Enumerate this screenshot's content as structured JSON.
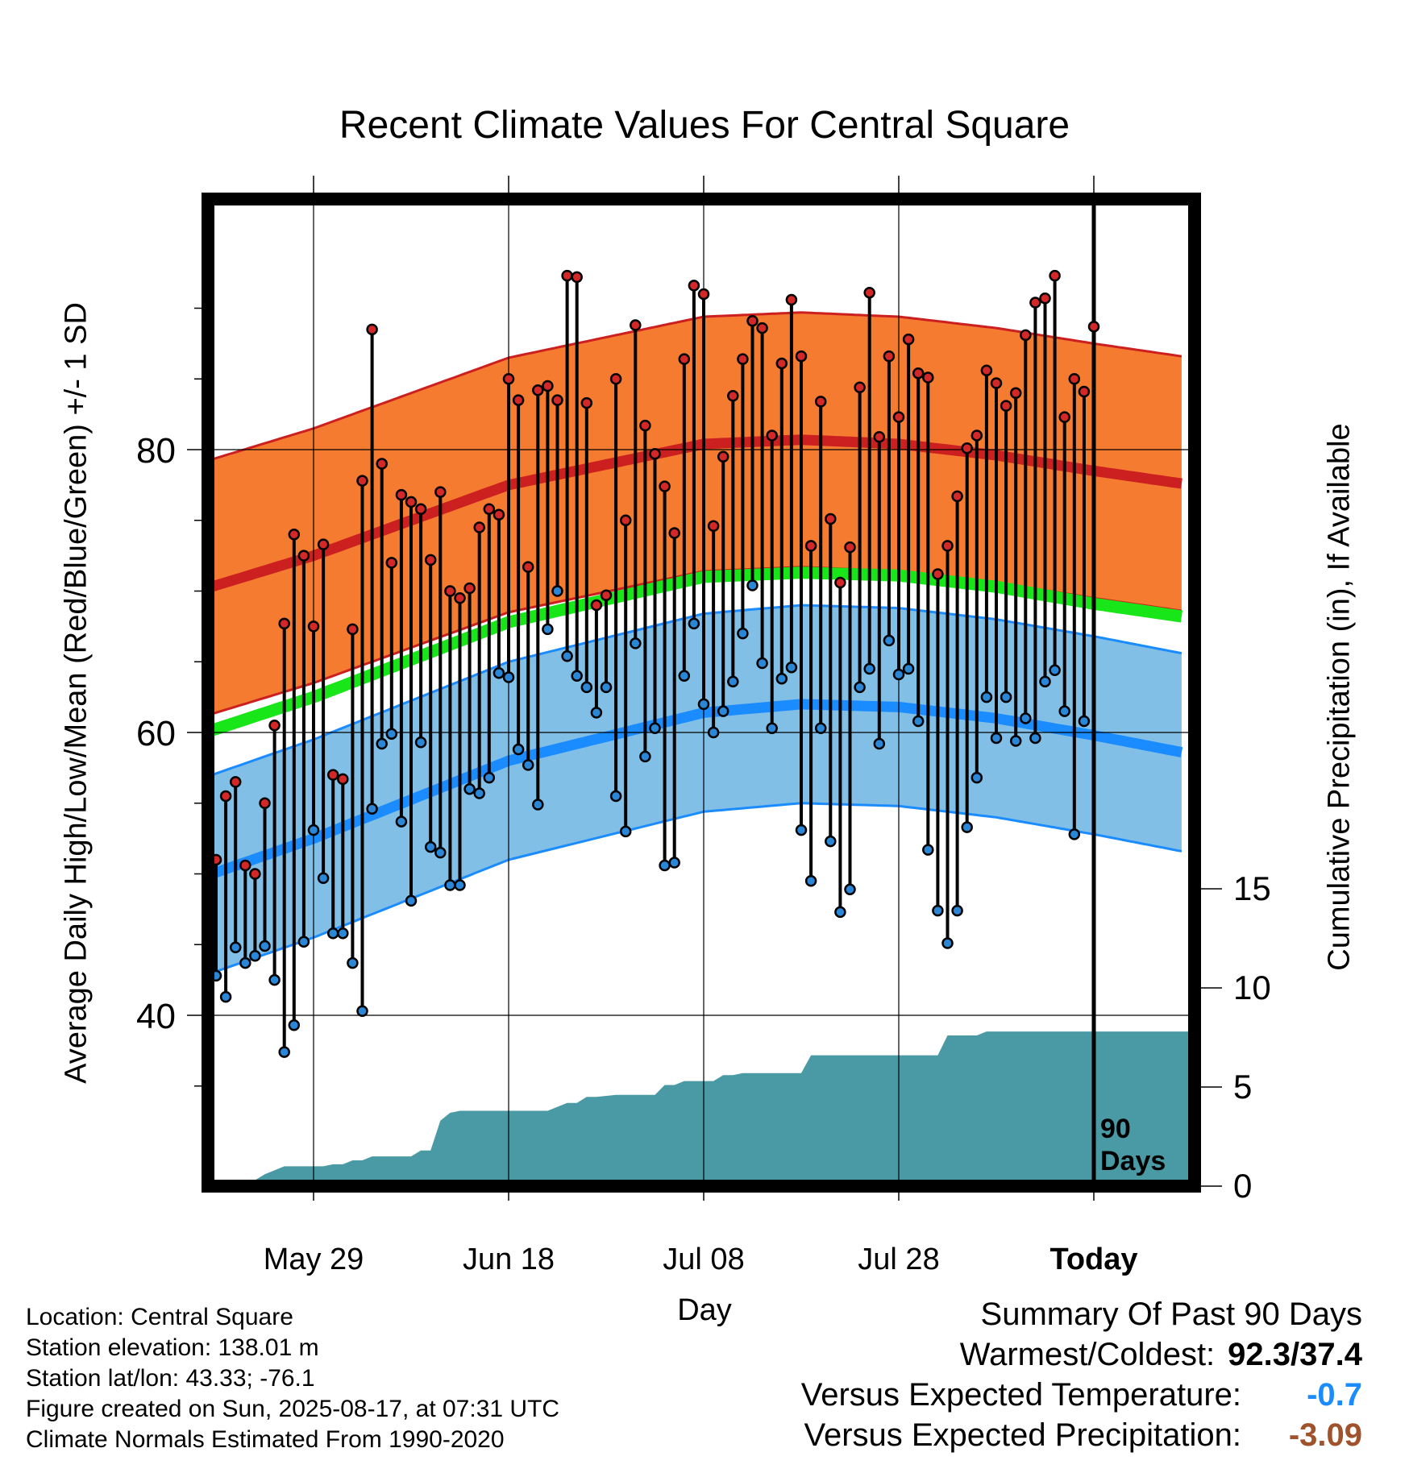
{
  "chart_data": {
    "type": "line",
    "title": "Recent Climate Values For Central Square",
    "xlabel": "Day",
    "ylabel": "Average Daily High/Low/Mean (Red/Blue/Green) +/- 1 SD",
    "y2label": "Cumulative Precipitation (in), If Available",
    "x_tick_labels": [
      "May 29",
      "Jun 18",
      "Jul 08",
      "Jul 28",
      "Today"
    ],
    "y_ticks": [
      40,
      60,
      80
    ],
    "y2_ticks": [
      0,
      5,
      10,
      15
    ],
    "ylim": [
      28,
      98
    ],
    "y2lim": [
      0,
      49.5
    ],
    "annotation": [
      "90",
      "Days"
    ],
    "colors": {
      "high_band": "#f47b30",
      "high_mean": "#cc2020",
      "mean_line": "#19e619",
      "low_band": "#82bfe6",
      "low_mean": "#1a8cff",
      "precip": "#4a9aa5",
      "high_marker": "#d42828",
      "low_marker": "#2a86d6"
    },
    "normal_high": [
      [
        -10,
        68.3
      ],
      [
        10,
        72.5
      ],
      [
        30,
        77.5
      ],
      [
        50,
        80.4
      ],
      [
        60,
        80.7
      ],
      [
        70,
        80.4
      ],
      [
        80,
        79.6
      ],
      [
        90,
        78.5
      ],
      [
        99,
        77.6
      ]
    ],
    "normal_high_sd": 9.0,
    "normal_low": [
      [
        -10,
        47.7
      ],
      [
        10,
        52.5
      ],
      [
        30,
        58.0
      ],
      [
        50,
        61.4
      ],
      [
        60,
        62.0
      ],
      [
        70,
        61.8
      ],
      [
        80,
        61.0
      ],
      [
        90,
        59.8
      ],
      [
        99,
        58.6
      ]
    ],
    "normal_low_sd": 7.0,
    "normal_mean": [
      [
        -10,
        58.0
      ],
      [
        10,
        62.5
      ],
      [
        30,
        67.8
      ],
      [
        50,
        71.0
      ],
      [
        60,
        71.3
      ],
      [
        70,
        71.1
      ],
      [
        80,
        70.3
      ],
      [
        90,
        69.1
      ],
      [
        99,
        68.2
      ]
    ],
    "daily_high": [
      51,
      55.5,
      56.5,
      50.6,
      50,
      55,
      60.5,
      67.7,
      74,
      72.5,
      67.5,
      73.3,
      57,
      56.7,
      67.3,
      77.8,
      88.5,
      79,
      72,
      76.8,
      76.3,
      75.8,
      72.2,
      77,
      70,
      69.5,
      70.2,
      74.5,
      75.8,
      75.4,
      85,
      83.5,
      71.7,
      84.2,
      84.5,
      83.5,
      92.3,
      92.2,
      83.3,
      69,
      69.7,
      85,
      75,
      88.8,
      81.7,
      79.7,
      77.4,
      74.1,
      86.4,
      91.6,
      91,
      74.6,
      79.5,
      83.8,
      86.4,
      89.1,
      88.6,
      81,
      86.1,
      90.6,
      86.6,
      73.2,
      83.4,
      75.1,
      70.6,
      73.1,
      84.4,
      91.1,
      80.9,
      86.6,
      82.3,
      87.8,
      85.4,
      85.1,
      71.2,
      73.2,
      76.7,
      80.1,
      81,
      85.6,
      84.7,
      83.1,
      84,
      88.1,
      90.4,
      90.7,
      92.3,
      82.3,
      85,
      84.1,
      88.7
    ],
    "daily_low": [
      42.8,
      41.3,
      44.8,
      43.7,
      44.2,
      44.9,
      42.5,
      37.4,
      39.3,
      45.2,
      53.1,
      49.7,
      45.8,
      45.8,
      43.7,
      40.3,
      54.6,
      59.2,
      59.9,
      53.7,
      48.1,
      59.3,
      51.9,
      51.5,
      49.2,
      49.2,
      56,
      55.7,
      56.8,
      64.2,
      63.9,
      58.8,
      57.7,
      54.9,
      67.3,
      70,
      65.4,
      64,
      63.2,
      61.4,
      63.2,
      55.5,
      53,
      66.3,
      58.3,
      60.3,
      50.6,
      50.8,
      64,
      67.7,
      62,
      60,
      61.5,
      63.6,
      67,
      70.4,
      64.9,
      60.3,
      63.8,
      64.6,
      53.1,
      49.5,
      60.3,
      52.3,
      47.3,
      48.9,
      63.2,
      64.5,
      59.2,
      66.5,
      64.1,
      64.5,
      60.8,
      51.7,
      47.4,
      45.1,
      47.4,
      53.3,
      56.8,
      62.5,
      59.6,
      62.5,
      59.4,
      61,
      59.6,
      63.6,
      64.4,
      61.5,
      52.8,
      60.8
    ],
    "cumulative_precip": [
      [
        0,
        0
      ],
      [
        3,
        0
      ],
      [
        5,
        0.6
      ],
      [
        7,
        1.0
      ],
      [
        11,
        1.0
      ],
      [
        12,
        1.1
      ],
      [
        13,
        1.1
      ],
      [
        14,
        1.3
      ],
      [
        15,
        1.3
      ],
      [
        16,
        1.5
      ],
      [
        20,
        1.5
      ],
      [
        21,
        1.8
      ],
      [
        22,
        1.8
      ],
      [
        23,
        3.3
      ],
      [
        24,
        3.7
      ],
      [
        25,
        3.8
      ],
      [
        34,
        3.8
      ],
      [
        35,
        4.0
      ],
      [
        36,
        4.2
      ],
      [
        37,
        4.2
      ],
      [
        38,
        4.5
      ],
      [
        39,
        4.5
      ],
      [
        41,
        4.6
      ],
      [
        45,
        4.6
      ],
      [
        46,
        5.1
      ],
      [
        47,
        5.1
      ],
      [
        48,
        5.3
      ],
      [
        51,
        5.3
      ],
      [
        52,
        5.6
      ],
      [
        53,
        5.6
      ],
      [
        54,
        5.7
      ],
      [
        60,
        5.7
      ],
      [
        61,
        6.6
      ],
      [
        62,
        6.6
      ],
      [
        74,
        6.6
      ],
      [
        75,
        7.6
      ],
      [
        78,
        7.6
      ],
      [
        79,
        7.8
      ],
      [
        100,
        7.8
      ]
    ]
  },
  "footer": {
    "location": "Location: Central Square",
    "elevation": "Station elevation: 138.01 m",
    "latlon": "Station lat/lon: 43.33; -76.1",
    "created": "Figure created on Sun, 2025-08-17, at 07:31 UTC",
    "normals": "Climate Normals Estimated From 1990-2020"
  },
  "summary": {
    "heading": "Summary Of Past 90 Days",
    "warm_label": "Warmest/Coldest:",
    "warm_value": "92.3/37.4",
    "temp_label": "Versus Expected Temperature:",
    "temp_value": "-0.7",
    "temp_color": "#1a8cff",
    "precip_label": "Versus Expected Precipitation:",
    "precip_value": "-3.09",
    "precip_color": "#a0522d"
  }
}
